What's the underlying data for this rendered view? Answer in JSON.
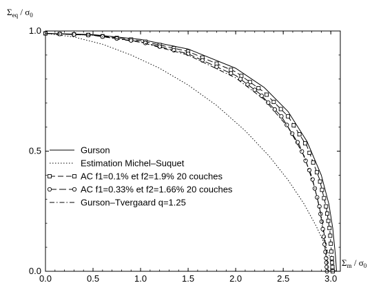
{
  "chart_data": {
    "type": "line",
    "title": "",
    "ylabel": {
      "base": "Σ",
      "sub": "eq",
      "mid": " / σ",
      "sub2": "0"
    },
    "xlabel": {
      "base": "Σ",
      "sub": "m",
      "mid": " / σ",
      "sub2": "0"
    },
    "xlim": [
      0.0,
      3.1
    ],
    "ylim": [
      0.0,
      1.0
    ],
    "x_ticks": [
      0.0,
      0.5,
      1.0,
      1.5,
      2.0,
      2.5,
      3.0
    ],
    "x_tick_labels": [
      "0.0",
      "0.5",
      "1.0",
      "1.5",
      "2.0",
      "2.5",
      "3.0"
    ],
    "y_ticks": [
      0.0,
      0.5,
      1.0
    ],
    "y_tick_labels": [
      "0.0",
      "0.5",
      "1.0"
    ],
    "legend_position": "lower-left",
    "series": [
      {
        "name": "Gurson",
        "dash": "",
        "marker": "none",
        "x": [
          0.0,
          0.5,
          1.0,
          1.5,
          2.0,
          2.3,
          2.55,
          2.75,
          2.9,
          2.98,
          3.02,
          3.05,
          3.06
        ],
        "y": [
          0.99,
          0.985,
          0.965,
          0.925,
          0.845,
          0.765,
          0.665,
          0.54,
          0.4,
          0.28,
          0.18,
          0.06,
          0.0
        ]
      },
      {
        "name": "Estimation Michel–Suquet",
        "dash": "1.5,2.5",
        "marker": "none",
        "x": [
          0.0,
          0.3,
          0.6,
          0.9,
          1.2,
          1.5,
          1.8,
          2.1,
          2.35,
          2.55,
          2.72,
          2.85,
          2.95,
          3.01,
          3.05
        ],
        "y": [
          0.99,
          0.975,
          0.945,
          0.9,
          0.845,
          0.775,
          0.69,
          0.585,
          0.48,
          0.38,
          0.28,
          0.185,
          0.1,
          0.04,
          0.0
        ]
      },
      {
        "name": "AC f1=0.1% et f2=1.9% 20 couches",
        "dash": "8,4",
        "marker": "square",
        "x": [
          0.0,
          0.5,
          1.0,
          1.5,
          2.0,
          2.3,
          2.55,
          2.75,
          2.88,
          2.95,
          2.99,
          3.01,
          3.02
        ],
        "y": [
          0.99,
          0.983,
          0.96,
          0.915,
          0.83,
          0.745,
          0.645,
          0.52,
          0.385,
          0.27,
          0.17,
          0.06,
          0.0
        ]
      },
      {
        "name": "AC f1=0.33% et f2=1.66% 20 couches",
        "dash": "10,4",
        "marker": "circle",
        "x": [
          0.0,
          0.5,
          1.0,
          1.5,
          2.0,
          2.25,
          2.48,
          2.67,
          2.8,
          2.88,
          2.92,
          2.95,
          2.96
        ],
        "y": [
          0.99,
          0.982,
          0.955,
          0.905,
          0.815,
          0.74,
          0.645,
          0.525,
          0.395,
          0.27,
          0.165,
          0.06,
          0.0
        ]
      },
      {
        "name": "Gurson–Tvergaard q=1.25",
        "dash": "7,3,1.5,3",
        "marker": "none",
        "x": [
          0.0,
          0.5,
          1.0,
          1.5,
          2.0,
          2.3,
          2.55,
          2.72,
          2.83,
          2.9,
          2.94,
          2.96,
          2.97
        ],
        "y": [
          0.99,
          0.982,
          0.953,
          0.9,
          0.805,
          0.715,
          0.6,
          0.48,
          0.35,
          0.23,
          0.13,
          0.05,
          0.0
        ]
      }
    ]
  }
}
